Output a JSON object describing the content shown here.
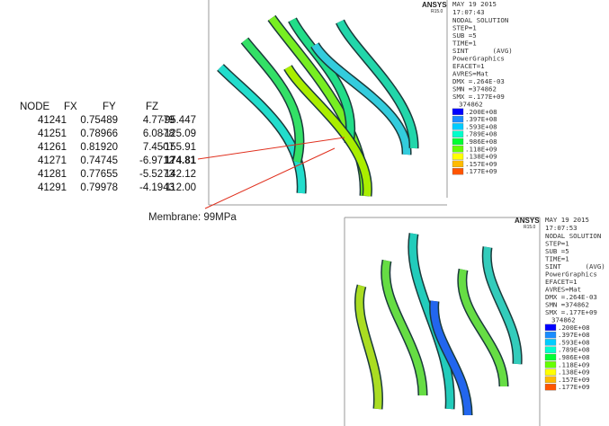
{
  "table": {
    "headers": [
      "NODE",
      "FX",
      "FY",
      "FZ"
    ],
    "rows": [
      [
        "41241",
        "0.75489",
        "4.7779",
        "-95.447"
      ],
      [
        "41251",
        "0.78966",
        "6.0878",
        "-125.09"
      ],
      [
        "41261",
        "0.81920",
        "7.4507",
        "-155.91"
      ],
      [
        "41271",
        "0.74745",
        "-6.9712",
        "174.81"
      ],
      [
        "41281",
        "0.77655",
        "-5.5273",
        "142.12"
      ],
      [
        "41291",
        "0.79978",
        "-4.1943",
        "112.00"
      ]
    ],
    "highlight": {
      "row": 3,
      "col": 3,
      "color": "#d9261c"
    }
  },
  "annotation": "Membrane: 99MPa",
  "panels": [
    {
      "brand": "ANSYS",
      "version": "R15.0",
      "date": "MAY 19 2015",
      "time": "17:07:43",
      "info": [
        "NODAL SOLUTION",
        "STEP=1",
        "SUB =5",
        "TIME=1",
        "SINT      (AVG)",
        "PowerGraphics",
        "EFACET=1",
        "AVRES=Mat",
        "DMX =.264E-03",
        "SMN =374862",
        "SMX =.177E+09"
      ],
      "legend_labels": [
        "374862",
        ".200E+08",
        ".397E+08",
        ".593E+08",
        ".789E+08",
        ".986E+08",
        ".118E+09",
        ".138E+09",
        ".157E+09",
        ".177E+09"
      ],
      "legend_colors": [
        "#0000ff",
        "#1a8cff",
        "#00ccff",
        "#00ffcc",
        "#00ff33",
        "#66ff00",
        "#ffff00",
        "#ffbb00",
        "#ff5500"
      ]
    },
    {
      "brand": "ANSYS",
      "version": "R15.0",
      "date": "MAY 19 2015",
      "time": "17:07:53",
      "info": [
        "NODAL SOLUTION",
        "STEP=1",
        "SUB =5",
        "TIME=1",
        "SINT      (AVG)",
        "PowerGraphics",
        "EFACET=1",
        "AVRES=Mat",
        "DMX =.264E-03",
        "SMN =374862",
        "SMX =.177E+09"
      ],
      "legend_labels": [
        "374862",
        ".200E+08",
        ".397E+08",
        ".593E+08",
        ".789E+08",
        ".986E+08",
        ".118E+09",
        ".138E+09",
        ".157E+09",
        ".177E+09"
      ],
      "legend_colors": [
        "#0000ff",
        "#1a8cff",
        "#00ccff",
        "#00ffcc",
        "#00ff33",
        "#66ff00",
        "#ffff00",
        "#ffbb00",
        "#ff5500"
      ]
    }
  ]
}
